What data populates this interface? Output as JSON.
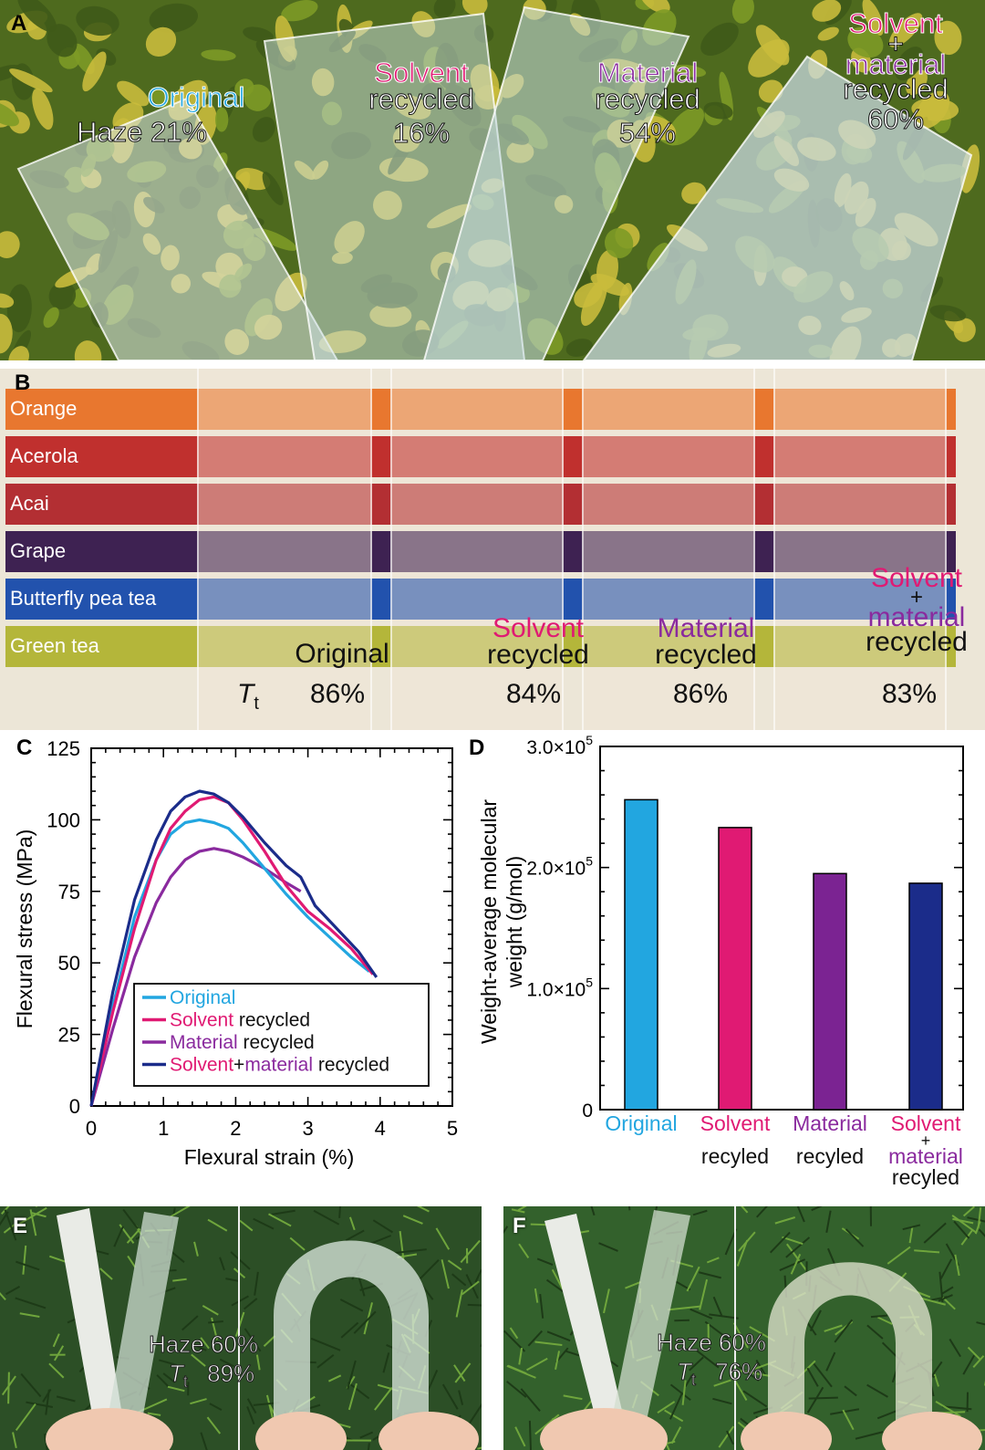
{
  "panel_labels": {
    "a": "A",
    "b": "B",
    "c": "C",
    "d": "D",
    "e": "E",
    "f": "F"
  },
  "panel_a": {
    "haze_label": "Haze",
    "samples": [
      {
        "name_line1": "Original",
        "name_line2": "",
        "name_line3": "",
        "haze": "21%",
        "color": "#22a6e0"
      },
      {
        "name_line1": "Solvent",
        "name_line2": "recycled",
        "name_line3": "",
        "haze": "16%",
        "color": "#e01a73"
      },
      {
        "name_line1": "Material",
        "name_line2": "recycled",
        "name_line3": "",
        "haze": "54%",
        "color": "#8a2a9e"
      },
      {
        "name_line1": "Solvent",
        "name_line2": "+",
        "name_line3": "material",
        "name_line4": "recycled",
        "haze": "60%",
        "color": "#e01a73"
      }
    ]
  },
  "panel_b": {
    "bars": [
      {
        "label": "Orange",
        "color": "#e8772f"
      },
      {
        "label": "Acerola",
        "color": "#c0302e"
      },
      {
        "label": "Acai",
        "color": "#b32f33"
      },
      {
        "label": "Grape",
        "color": "#3e2252"
      },
      {
        "label": "Butterfly pea tea",
        "color": "#2252ad"
      },
      {
        "label": "Green tea",
        "color": "#b4b63a"
      }
    ],
    "tt_symbol": "T",
    "tt_sub": "t",
    "samples": [
      {
        "line1": "Original",
        "line2": "",
        "line3": "",
        "tt": "86%"
      },
      {
        "line1": "Solvent",
        "line2": "recycled",
        "line3": "",
        "tt": "84%"
      },
      {
        "line1": "Material",
        "line2": "recycled",
        "line3": "",
        "tt": "86%"
      },
      {
        "line1": "Solvent",
        "line2": "+",
        "line3": "material",
        "line4": "recycled",
        "tt": "83%"
      }
    ]
  },
  "chart_data": [
    {
      "type": "line",
      "xlabel": "Flexural strain (%)",
      "ylabel": "Flexural stress (MPa)",
      "xlim": [
        0,
        5
      ],
      "ylim": [
        0,
        125
      ],
      "xticks": [
        "0",
        "1",
        "2",
        "3",
        "4",
        "5"
      ],
      "yticks": [
        "0",
        "25",
        "50",
        "75",
        "100",
        "125"
      ],
      "legend_position": "bottom-left",
      "series": [
        {
          "name": "Original",
          "color": "#22a6e0",
          "x": [
            0,
            0.3,
            0.6,
            0.9,
            1.1,
            1.3,
            1.5,
            1.7,
            1.9,
            2.1,
            2.4,
            2.7,
            3.0,
            3.3,
            3.6,
            3.85
          ],
          "y": [
            0,
            35,
            66,
            86,
            95,
            99,
            100,
            99,
            97,
            92,
            83,
            74,
            66,
            59,
            52,
            47
          ]
        },
        {
          "name_parts": [
            "Solvent",
            " recycled"
          ],
          "color": "#e01a73",
          "x": [
            0,
            0.3,
            0.6,
            0.9,
            1.1,
            1.3,
            1.5,
            1.7,
            1.9,
            2.1,
            2.4,
            2.7,
            3.0,
            3.3,
            3.6,
            3.9
          ],
          "y": [
            0,
            33,
            62,
            86,
            97,
            103,
            107,
            108,
            106,
            100,
            89,
            77,
            68,
            62,
            55,
            46
          ]
        },
        {
          "name_parts": [
            "Material",
            " recycled"
          ],
          "color": "#8a2a9e",
          "x": [
            0,
            0.3,
            0.6,
            0.9,
            1.1,
            1.3,
            1.5,
            1.7,
            1.9,
            2.1,
            2.4,
            2.7,
            2.9
          ],
          "y": [
            0,
            27,
            52,
            71,
            80,
            86,
            89,
            90,
            89,
            87,
            83,
            78,
            75
          ]
        },
        {
          "name_parts": [
            "Solvent",
            "+",
            "material",
            " recycled"
          ],
          "color": "#1b2c8a",
          "x": [
            0,
            0.3,
            0.6,
            0.9,
            1.1,
            1.3,
            1.5,
            1.7,
            1.9,
            2.1,
            2.4,
            2.7,
            2.9,
            3.1,
            3.4,
            3.7,
            3.95
          ],
          "y": [
            0,
            40,
            72,
            93,
            103,
            108,
            110,
            109,
            106,
            101,
            92,
            84,
            80,
            70,
            62,
            54,
            45
          ]
        }
      ]
    },
    {
      "type": "bar",
      "ylabel_line1": "Weight-average molecular",
      "ylabel_line2": "weight (g/mol)",
      "ylim": [
        0,
        300000
      ],
      "yticks": [
        {
          "value": 0,
          "mant": "0",
          "exp": ""
        },
        {
          "value": 100000,
          "mant": "1.0×10",
          "exp": "5"
        },
        {
          "value": 200000,
          "mant": "2.0×10",
          "exp": "5"
        },
        {
          "value": 300000,
          "mant": "3.0×10",
          "exp": "5"
        }
      ],
      "categories": [
        {
          "line1": "Original",
          "line2": "",
          "line3": ""
        },
        {
          "line1": "Solvent",
          "line2": "recyled",
          "line3": ""
        },
        {
          "line1": "Material",
          "line2": "recyled",
          "line3": ""
        },
        {
          "line1": "Solvent",
          "line2": "+",
          "line3": "material",
          "line4": "recyled"
        }
      ],
      "values": [
        256000,
        233000,
        195000,
        187000
      ],
      "colors": [
        "#22a6e0",
        "#e01a73",
        "#7b2392",
        "#1b2c8a"
      ]
    }
  ],
  "panel_e": {
    "haze_label": "Haze",
    "haze": "60%",
    "tt_symbol": "T",
    "tt_sub": "t",
    "tt": "89%"
  },
  "panel_f": {
    "haze_label": "Haze",
    "haze": "60%",
    "tt_symbol": "T",
    "tt_sub": "t",
    "tt": "76%"
  }
}
